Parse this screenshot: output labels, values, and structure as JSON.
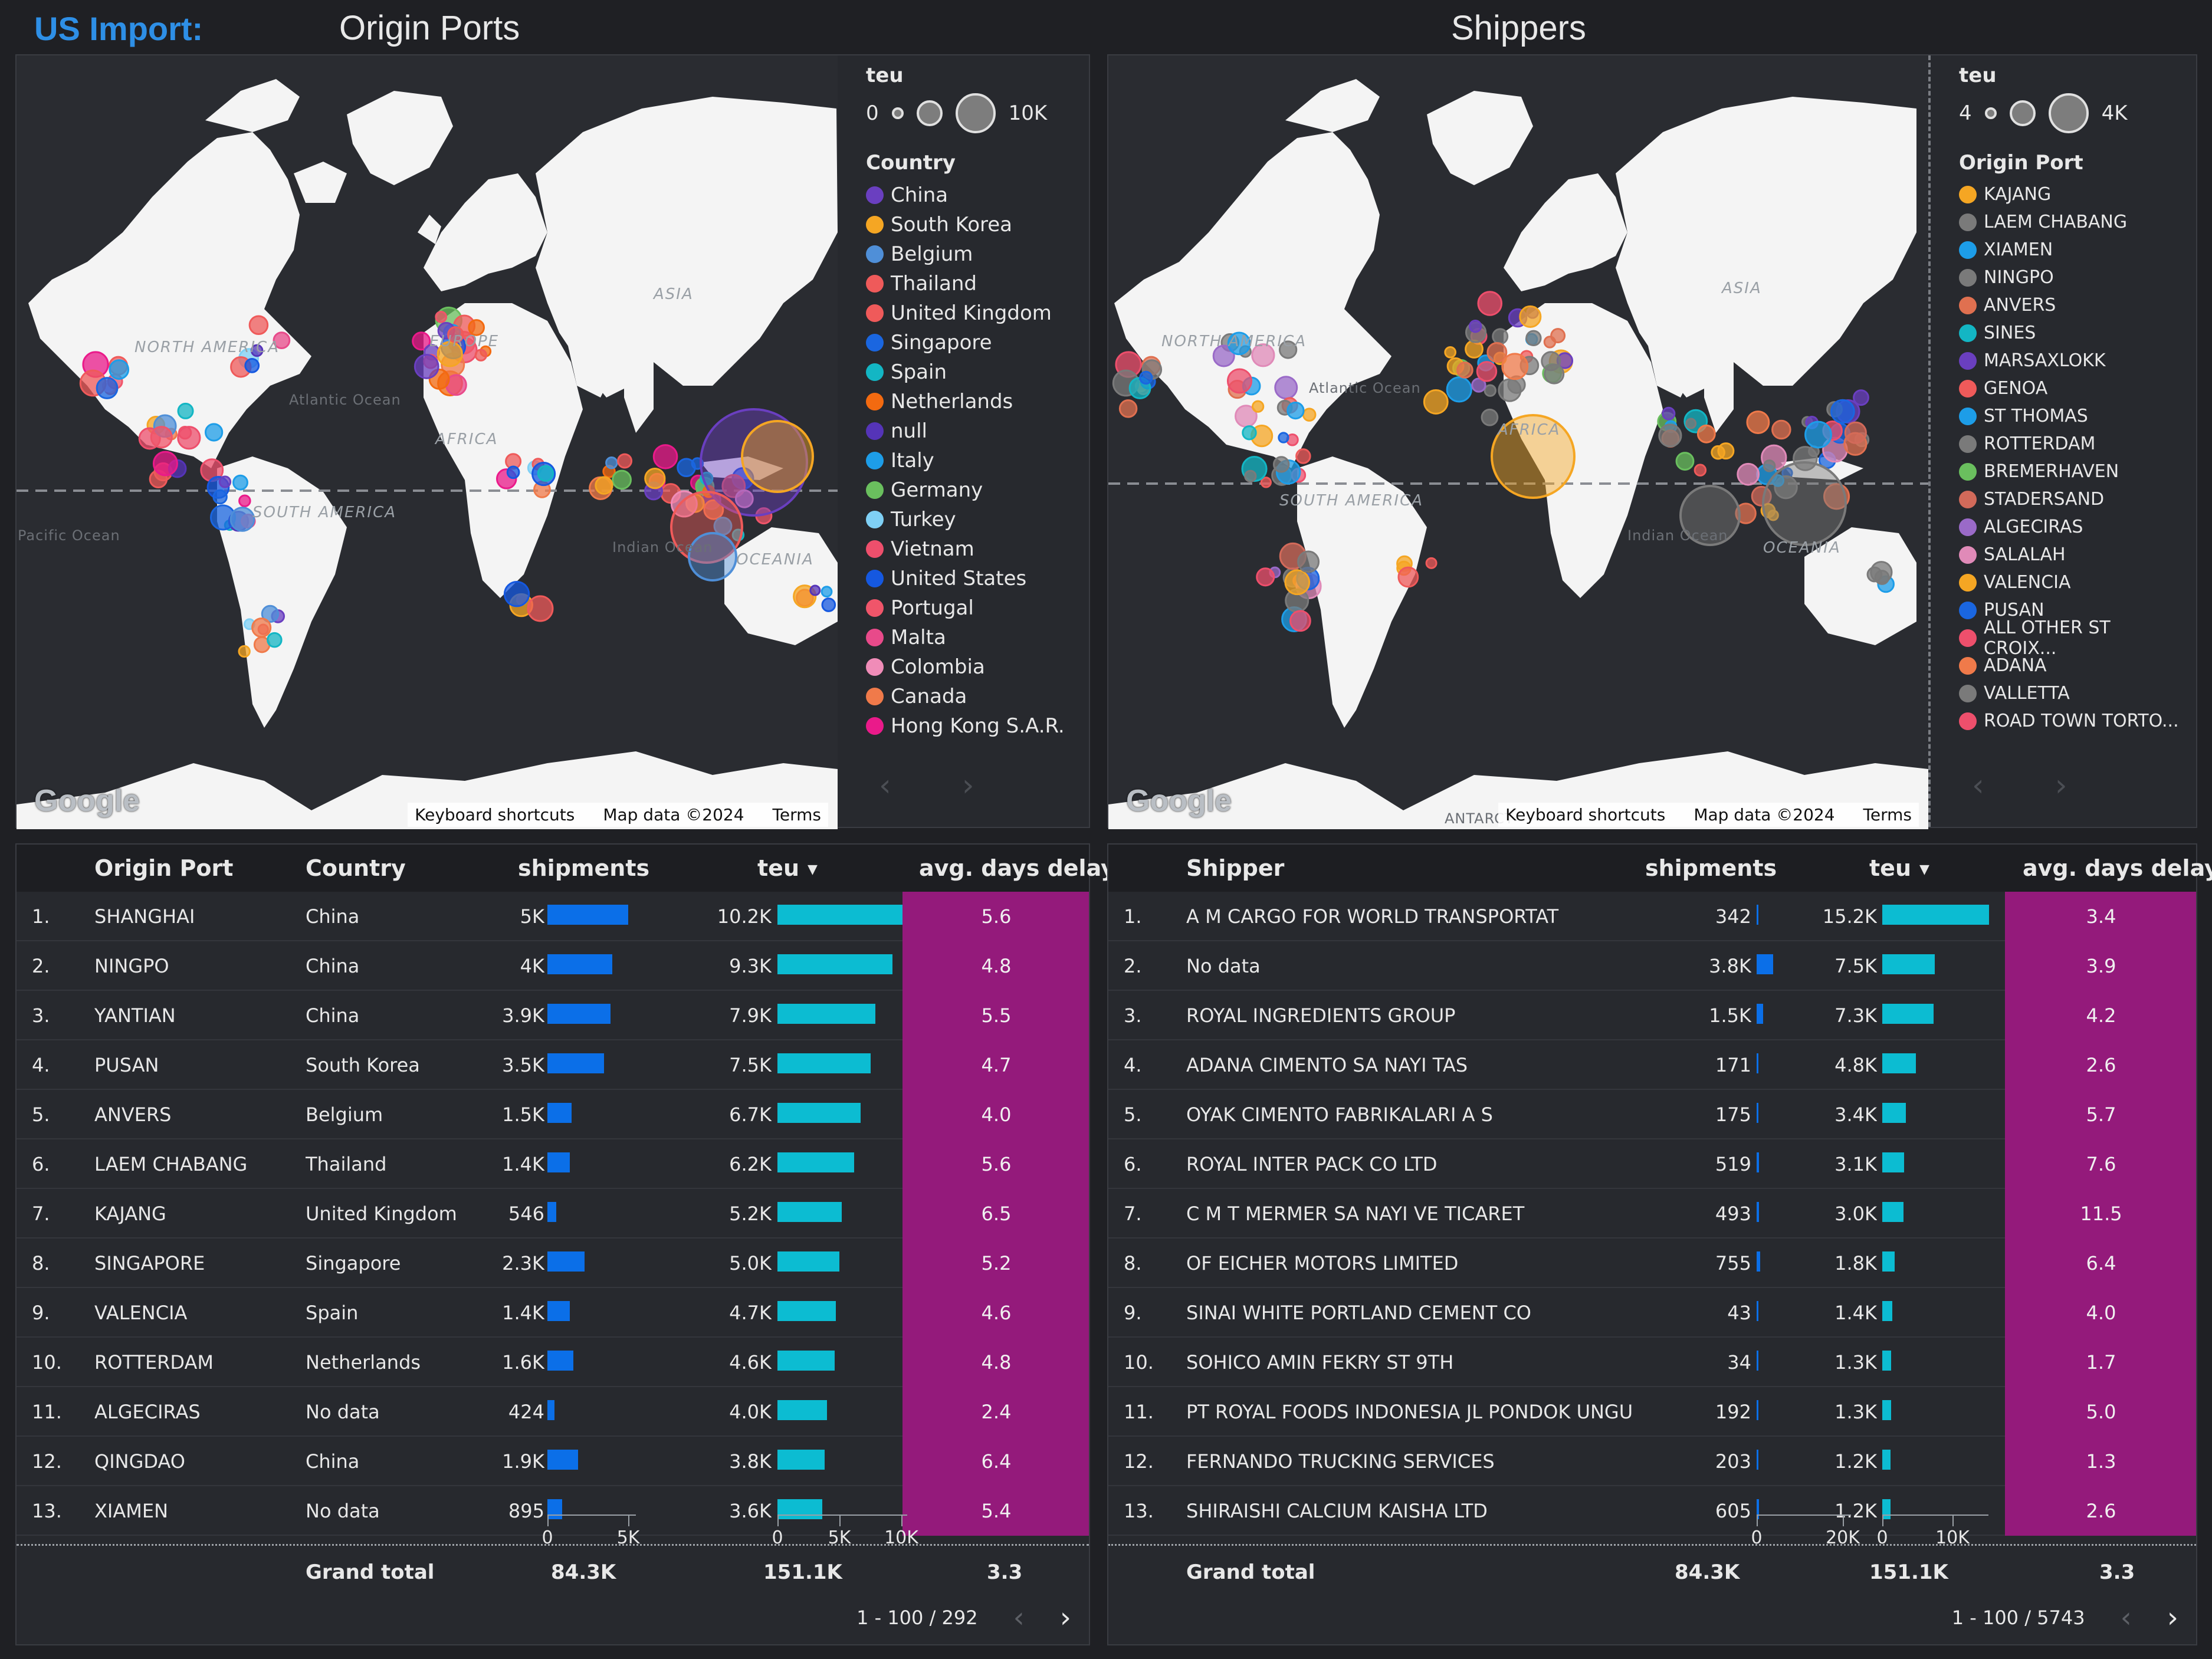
{
  "header": {
    "brand": "US Import:",
    "title_left": "Origin Ports",
    "title_right": "Shippers"
  },
  "map_left": {
    "size_legend": {
      "title": "teu",
      "min": "0",
      "max": "10K"
    },
    "color_legend_title": "Country",
    "legend": [
      {
        "label": "China",
        "color": "#6a3fc0"
      },
      {
        "label": "South Korea",
        "color": "#f5a623"
      },
      {
        "label": "Belgium",
        "color": "#4f8fd8"
      },
      {
        "label": "Thailand",
        "color": "#ef5a5a"
      },
      {
        "label": "United Kingdom",
        "color": "#ef5a5a"
      },
      {
        "label": "Singapore",
        "color": "#1a66e0"
      },
      {
        "label": "Spain",
        "color": "#13b6c4"
      },
      {
        "label": "Netherlands",
        "color": "#f36a10"
      },
      {
        "label": "null",
        "color": "#5534b8"
      },
      {
        "label": "Italy",
        "color": "#1d9de8"
      },
      {
        "label": "Germany",
        "color": "#6abf5e"
      },
      {
        "label": "Turkey",
        "color": "#7fd0f5"
      },
      {
        "label": "Vietnam",
        "color": "#ee4f6c"
      },
      {
        "label": "United States",
        "color": "#1558e0"
      },
      {
        "label": "Portugal",
        "color": "#f0556a"
      },
      {
        "label": "Malta",
        "color": "#e84a8a"
      },
      {
        "label": "Colombia",
        "color": "#f08cb8"
      },
      {
        "label": "Canada",
        "color": "#f07a4a"
      },
      {
        "label": "Hong Kong S.A.R.",
        "color": "#ea1a8a"
      }
    ],
    "labels": {
      "na": "NORTH AMERICA",
      "sa": "SOUTH AMERICA",
      "eu": "EUROPE",
      "af": "AFRICA",
      "as": "ASIA",
      "oc": "OCEANIA",
      "atl": "Atlantic Ocean",
      "ind": "Indian Ocean",
      "pac": "Pacific Ocean"
    },
    "footer": {
      "shortcuts": "Keyboard shortcuts",
      "mapdata": "Map data ©2024",
      "terms": "Terms"
    },
    "google": "Google"
  },
  "map_right": {
    "size_legend": {
      "title": "teu",
      "min": "4",
      "max": "4K"
    },
    "color_legend_title": "Origin Port",
    "legend": [
      {
        "label": "KAJANG",
        "color": "#f5a623"
      },
      {
        "label": "LAEM CHABANG",
        "color": "#7a7a7a"
      },
      {
        "label": "XIAMEN",
        "color": "#1d9de8"
      },
      {
        "label": "NINGPO",
        "color": "#7a7a7a"
      },
      {
        "label": "ANVERS",
        "color": "#e07050"
      },
      {
        "label": "SINES",
        "color": "#13b6c4"
      },
      {
        "label": "MARSAXLOKK",
        "color": "#6a3fc0"
      },
      {
        "label": "GENOA",
        "color": "#ef5a5a"
      },
      {
        "label": "ST THOMAS",
        "color": "#1d9de8"
      },
      {
        "label": "ROTTERDAM",
        "color": "#7a7a7a"
      },
      {
        "label": "BREMERHAVEN",
        "color": "#6abf5e"
      },
      {
        "label": "STADERSAND",
        "color": "#d26a5a"
      },
      {
        "label": "ALGECIRAS",
        "color": "#9a6ac8"
      },
      {
        "label": "SALALAH",
        "color": "#e08ab8"
      },
      {
        "label": "VALENCIA",
        "color": "#f5a623"
      },
      {
        "label": "PUSAN",
        "color": "#1a66e0"
      },
      {
        "label": "ALL OTHER ST CROIX...",
        "color": "#ee4f6c"
      },
      {
        "label": "ADANA",
        "color": "#f07a4a"
      },
      {
        "label": "VALLETTA",
        "color": "#7a7a7a"
      },
      {
        "label": "ROAD TOWN TORTO...",
        "color": "#ee4f6c"
      }
    ],
    "labels": {
      "na": "NORTH AMERICA",
      "sa": "SOUTH AMERICA",
      "af": "AFRICA",
      "as": "ASIA",
      "oc": "OCEANIA",
      "atl": "Atlantic Ocean",
      "ind": "Indian Ocean",
      "ant": "ANTARCT"
    },
    "footer": {
      "shortcuts": "Keyboard shortcuts",
      "mapdata": "Map data ©2024",
      "terms": "Terms"
    },
    "google": "Google"
  },
  "table_ports": {
    "columns": {
      "name": "Origin Port",
      "country": "Country",
      "shipments": "shipments",
      "teu": "teu",
      "delay": "avg. days delay"
    },
    "rows": [
      {
        "idx": "1.",
        "name": "SHANGHAI",
        "country": "China",
        "shipments": "5K",
        "ship_v": 5.0,
        "teu": "10.2K",
        "teu_v": 10.2,
        "delay": "5.6"
      },
      {
        "idx": "2.",
        "name": "NINGPO",
        "country": "China",
        "shipments": "4K",
        "ship_v": 4.0,
        "teu": "9.3K",
        "teu_v": 9.3,
        "delay": "4.8"
      },
      {
        "idx": "3.",
        "name": "YANTIAN",
        "country": "China",
        "shipments": "3.9K",
        "ship_v": 3.9,
        "teu": "7.9K",
        "teu_v": 7.9,
        "delay": "5.5"
      },
      {
        "idx": "4.",
        "name": "PUSAN",
        "country": "South Korea",
        "shipments": "3.5K",
        "ship_v": 3.5,
        "teu": "7.5K",
        "teu_v": 7.5,
        "delay": "4.7"
      },
      {
        "idx": "5.",
        "name": "ANVERS",
        "country": "Belgium",
        "shipments": "1.5K",
        "ship_v": 1.5,
        "teu": "6.7K",
        "teu_v": 6.7,
        "delay": "4.0"
      },
      {
        "idx": "6.",
        "name": "LAEM CHABANG",
        "country": "Thailand",
        "shipments": "1.4K",
        "ship_v": 1.4,
        "teu": "6.2K",
        "teu_v": 6.2,
        "delay": "5.6"
      },
      {
        "idx": "7.",
        "name": "KAJANG",
        "country": "United Kingdom",
        "shipments": "546",
        "ship_v": 0.546,
        "teu": "5.2K",
        "teu_v": 5.2,
        "delay": "6.5"
      },
      {
        "idx": "8.",
        "name": "SINGAPORE",
        "country": "Singapore",
        "shipments": "2.3K",
        "ship_v": 2.3,
        "teu": "5.0K",
        "teu_v": 5.0,
        "delay": "5.2"
      },
      {
        "idx": "9.",
        "name": "VALENCIA",
        "country": "Spain",
        "shipments": "1.4K",
        "ship_v": 1.4,
        "teu": "4.7K",
        "teu_v": 4.7,
        "delay": "4.6"
      },
      {
        "idx": "10.",
        "name": "ROTTERDAM",
        "country": "Netherlands",
        "shipments": "1.6K",
        "ship_v": 1.6,
        "teu": "4.6K",
        "teu_v": 4.6,
        "delay": "4.8"
      },
      {
        "idx": "11.",
        "name": "ALGECIRAS",
        "country": "No data",
        "shipments": "424",
        "ship_v": 0.424,
        "teu": "4.0K",
        "teu_v": 4.0,
        "delay": "2.4"
      },
      {
        "idx": "12.",
        "name": "QINGDAO",
        "country": "China",
        "shipments": "1.9K",
        "ship_v": 1.9,
        "teu": "3.8K",
        "teu_v": 3.8,
        "delay": "6.4"
      },
      {
        "idx": "13.",
        "name": "XIAMEN",
        "country": "No data",
        "shipments": "895",
        "ship_v": 0.895,
        "teu": "3.6K",
        "teu_v": 3.6,
        "delay": "5.4"
      }
    ],
    "axis_shipments": [
      "0",
      "5K"
    ],
    "axis_teu": [
      "0",
      "5K",
      "10K"
    ],
    "totals": {
      "label": "Grand total",
      "shipments": "84.3K",
      "teu": "151.1K",
      "delay": "3.3"
    },
    "pager": "1 - 100 / 292"
  },
  "table_shippers": {
    "columns": {
      "name": "Shipper",
      "shipments": "shipments",
      "teu": "teu",
      "delay": "avg. days delay"
    },
    "rows": [
      {
        "idx": "1.",
        "name": "A M CARGO FOR WORLD TRANSPORTAT",
        "shipments": "342",
        "ship_v": 0.342,
        "teu": "15.2K",
        "teu_v": 15.2,
        "delay": "3.4"
      },
      {
        "idx": "2.",
        "name": "No data",
        "shipments": "3.8K",
        "ship_v": 3.8,
        "teu": "7.5K",
        "teu_v": 7.5,
        "delay": "3.9"
      },
      {
        "idx": "3.",
        "name": "ROYAL INGREDIENTS GROUP",
        "shipments": "1.5K",
        "ship_v": 1.5,
        "teu": "7.3K",
        "teu_v": 7.3,
        "delay": "4.2"
      },
      {
        "idx": "4.",
        "name": "ADANA CIMENTO SA NAYI TAS",
        "shipments": "171",
        "ship_v": 0.171,
        "teu": "4.8K",
        "teu_v": 4.8,
        "delay": "2.6"
      },
      {
        "idx": "5.",
        "name": "OYAK CIMENTO FABRIKALARI A S",
        "shipments": "175",
        "ship_v": 0.175,
        "teu": "3.4K",
        "teu_v": 3.4,
        "delay": "5.7"
      },
      {
        "idx": "6.",
        "name": "ROYAL INTER PACK CO LTD",
        "shipments": "519",
        "ship_v": 0.519,
        "teu": "3.1K",
        "teu_v": 3.1,
        "delay": "7.6"
      },
      {
        "idx": "7.",
        "name": "C M T MERMER SA NAYI VE TICARET",
        "shipments": "493",
        "ship_v": 0.493,
        "teu": "3.0K",
        "teu_v": 3.0,
        "delay": "11.5"
      },
      {
        "idx": "8.",
        "name": "OF EICHER MOTORS LIMITED",
        "shipments": "755",
        "ship_v": 0.755,
        "teu": "1.8K",
        "teu_v": 1.8,
        "delay": "6.4"
      },
      {
        "idx": "9.",
        "name": "SINAI WHITE PORTLAND CEMENT CO",
        "shipments": "43",
        "ship_v": 0.043,
        "teu": "1.4K",
        "teu_v": 1.4,
        "delay": "4.0"
      },
      {
        "idx": "10.",
        "name": "SOHICO AMIN FEKRY ST 9TH",
        "shipments": "34",
        "ship_v": 0.034,
        "teu": "1.3K",
        "teu_v": 1.3,
        "delay": "1.7"
      },
      {
        "idx": "11.",
        "name": "PT ROYAL FOODS INDONESIA JL PONDOK UNGU",
        "shipments": "192",
        "ship_v": 0.192,
        "teu": "1.3K",
        "teu_v": 1.3,
        "delay": "5.0"
      },
      {
        "idx": "12.",
        "name": "FERNANDO TRUCKING SERVICES",
        "shipments": "203",
        "ship_v": 0.203,
        "teu": "1.2K",
        "teu_v": 1.2,
        "delay": "1.3"
      },
      {
        "idx": "13.",
        "name": "SHIRAISHI CALCIUM KAISHA LTD",
        "shipments": "605",
        "ship_v": 0.605,
        "teu": "1.2K",
        "teu_v": 1.2,
        "delay": "2.6"
      }
    ],
    "axis_shipments": [
      "0",
      "20K"
    ],
    "axis_teu": [
      "0",
      "10K"
    ],
    "totals": {
      "label": "Grand total",
      "shipments": "84.3K",
      "teu": "151.1K",
      "delay": "3.3"
    },
    "pager": "1 - 100 / 5743"
  }
}
